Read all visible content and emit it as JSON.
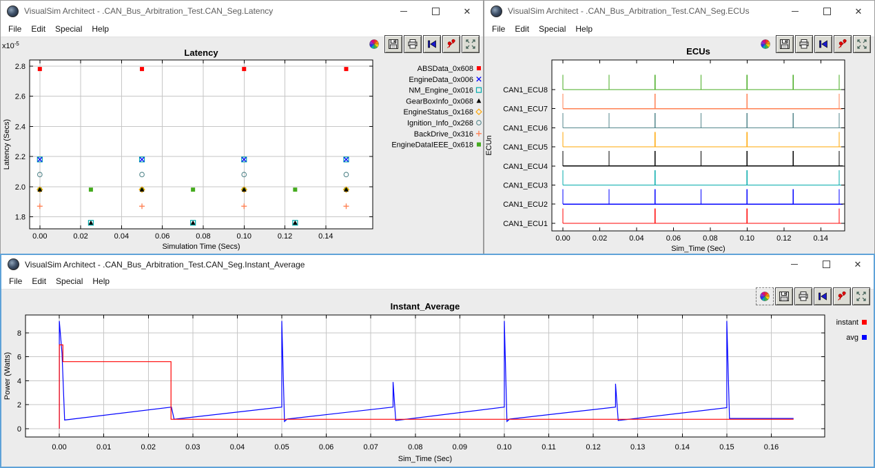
{
  "menu": [
    "File",
    "Edit",
    "Special",
    "Help"
  ],
  "icons": {
    "close_glyph": "✕"
  },
  "toolbar_icons": [
    "palette-icon",
    "save-icon",
    "print-icon",
    "go-first-icon",
    "format-plot-icon",
    "fullscreen-icon"
  ],
  "windows": {
    "latency": {
      "title": "VisualSim Architect - .CAN_Bus_Arbitration_Test.CAN_Seg.Latency"
    },
    "ecus": {
      "title": "VisualSim Architect - .CAN_Bus_Arbitration_Test.CAN_Seg.ECUs"
    },
    "instant": {
      "title": "VisualSim Architect - .CAN_Bus_Arbitration_Test.CAN_Seg.Instant_Average"
    }
  },
  "chart_data": [
    {
      "id": "latency",
      "type": "scatter",
      "title": "Latency",
      "xlabel": "Simulation Time (Secs)",
      "ylabel": "Latency (Secs)",
      "y_multiplier": {
        "base": "x10",
        "exponent": "-5"
      },
      "grid": true,
      "legend_position": "right",
      "xlim": [
        -0.005,
        0.163
      ],
      "ylim": [
        1.72,
        2.84
      ],
      "xticks": [
        0.0,
        0.02,
        0.04,
        0.06,
        0.08,
        0.1,
        0.12,
        0.14
      ],
      "xtick_labels": [
        "0.00",
        "0.02",
        "0.04",
        "0.06",
        "0.08",
        "0.10",
        "0.12",
        "0.14"
      ],
      "yticks": [
        1.8,
        2.0,
        2.2,
        2.4,
        2.6,
        2.8
      ],
      "ytick_labels": [
        "1.8",
        "2.0",
        "2.2",
        "2.4",
        "2.6",
        "2.8"
      ],
      "series": [
        {
          "name": "ABSData_0x608",
          "color": "#ff0000",
          "marker": "filled-square",
          "points": [
            [
              0.0,
              2.78
            ],
            [
              0.05,
              2.78
            ],
            [
              0.1,
              2.78
            ],
            [
              0.15,
              2.78
            ]
          ]
        },
        {
          "name": "EngineData_0x006",
          "color": "#0000ff",
          "marker": "cross",
          "points": [
            [
              0.0,
              2.18
            ],
            [
              0.05,
              2.18
            ],
            [
              0.1,
              2.18
            ],
            [
              0.15,
              2.18
            ]
          ]
        },
        {
          "name": "NM_Engine_0x016",
          "color": "#00aaaa",
          "marker": "open-square",
          "points": [
            [
              0.0,
              2.18
            ],
            [
              0.025,
              1.76
            ],
            [
              0.05,
              2.18
            ],
            [
              0.075,
              1.76
            ],
            [
              0.1,
              2.18
            ],
            [
              0.125,
              1.76
            ],
            [
              0.15,
              2.18
            ]
          ]
        },
        {
          "name": "GearBoxInfo_0x068",
          "color": "#000000",
          "marker": "filled-triangle",
          "points": [
            [
              0.0,
              1.98
            ],
            [
              0.025,
              1.76
            ],
            [
              0.05,
              1.98
            ],
            [
              0.075,
              1.76
            ],
            [
              0.1,
              1.98
            ],
            [
              0.125,
              1.76
            ],
            [
              0.15,
              1.98
            ]
          ]
        },
        {
          "name": "EngineStatus_0x168",
          "color": "#ffa500",
          "marker": "open-diamond",
          "points": [
            [
              0.0,
              1.98
            ],
            [
              0.05,
              1.98
            ],
            [
              0.1,
              1.98
            ],
            [
              0.15,
              1.98
            ]
          ]
        },
        {
          "name": "Ignition_Info_0x268",
          "color": "#53868b",
          "marker": "open-circle",
          "points": [
            [
              0.0,
              2.08
            ],
            [
              0.05,
              2.08
            ],
            [
              0.1,
              2.08
            ],
            [
              0.15,
              2.08
            ]
          ]
        },
        {
          "name": "BackDrive_0x316",
          "color": "#ff7f50",
          "marker": "plus",
          "points": [
            [
              0.0,
              1.87
            ],
            [
              0.05,
              1.87
            ],
            [
              0.1,
              1.87
            ],
            [
              0.15,
              1.87
            ]
          ]
        },
        {
          "name": "EngineDataIEEE_0x618",
          "color": "#45ab1f",
          "marker": "filled-square",
          "points": [
            [
              0.0,
              1.98
            ],
            [
              0.025,
              1.98
            ],
            [
              0.05,
              1.98
            ],
            [
              0.075,
              1.98
            ],
            [
              0.1,
              1.98
            ],
            [
              0.125,
              1.98
            ],
            [
              0.15,
              1.98
            ]
          ]
        }
      ]
    },
    {
      "id": "ecus",
      "type": "line",
      "subtype": "event-rows",
      "title": "ECUs",
      "xlabel": "Sim_Time (Sec)",
      "ylabel": "ECUn",
      "grid": false,
      "xlim": [
        -0.006,
        0.153
      ],
      "ylim": [
        0.6,
        9.55
      ],
      "xticks": [
        0.0,
        0.02,
        0.04,
        0.06,
        0.08,
        0.1,
        0.12,
        0.14
      ],
      "xtick_labels": [
        "0.00",
        "0.02",
        "0.04",
        "0.06",
        "0.08",
        "0.10",
        "0.12",
        "0.14"
      ],
      "baseline_end": 0.152,
      "spike_height": 0.78,
      "rows": [
        {
          "label": "CAN1_ECU1",
          "color": "#ff0000",
          "level": 1,
          "events": [
            0.0,
            0.05,
            0.1,
            0.15
          ]
        },
        {
          "label": "CAN1_ECU2",
          "color": "#0000ff",
          "level": 2,
          "events": [
            0.0,
            0.025,
            0.05,
            0.075,
            0.1,
            0.125,
            0.15
          ]
        },
        {
          "label": "CAN1_ECU3",
          "color": "#00aaaa",
          "level": 3,
          "events": [
            0.0,
            0.05,
            0.1,
            0.15
          ]
        },
        {
          "label": "CAN1_ECU4",
          "color": "#000000",
          "level": 4,
          "events": [
            0.0,
            0.025,
            0.05,
            0.075,
            0.1,
            0.125,
            0.15
          ]
        },
        {
          "label": "CAN1_ECU5",
          "color": "#ffa500",
          "level": 5,
          "events": [
            0.0,
            0.05,
            0.1,
            0.15
          ]
        },
        {
          "label": "CAN1_ECU6",
          "color": "#53868b",
          "level": 6,
          "events": [
            0.0,
            0.025,
            0.05,
            0.075,
            0.1,
            0.125,
            0.15
          ]
        },
        {
          "label": "CAN1_ECU7",
          "color": "#ff7f50",
          "level": 7,
          "events": [
            0.0,
            0.05,
            0.1,
            0.15
          ]
        },
        {
          "label": "CAN1_ECU8",
          "color": "#45ab1f",
          "level": 8,
          "events": [
            0.0,
            0.025,
            0.05,
            0.075,
            0.1,
            0.125,
            0.15
          ]
        }
      ]
    },
    {
      "id": "instant",
      "type": "line",
      "title": "Instant_Average",
      "xlabel": "Sim_Time (Sec)",
      "ylabel": "Power (Watts)",
      "grid": true,
      "legend_position": "right",
      "xlim": [
        -0.0076,
        0.172
      ],
      "ylim": [
        -0.7,
        9.5
      ],
      "xticks": [
        0.0,
        0.01,
        0.02,
        0.03,
        0.04,
        0.05,
        0.06,
        0.07,
        0.08,
        0.09,
        0.1,
        0.11,
        0.12,
        0.13,
        0.14,
        0.15,
        0.16
      ],
      "xtick_labels": [
        "0.00",
        "0.01",
        "0.02",
        "0.03",
        "0.04",
        "0.05",
        "0.06",
        "0.07",
        "0.08",
        "0.09",
        "0.10",
        "0.11",
        "0.12",
        "0.13",
        "0.14",
        "0.15",
        "0.16"
      ],
      "yticks": [
        0,
        2,
        4,
        6,
        8
      ],
      "ytick_labels": [
        "0",
        "2",
        "4",
        "6",
        "8"
      ],
      "series": [
        {
          "name": "instant",
          "color": "#ff0000",
          "points": [
            [
              0.0,
              0.0
            ],
            [
              0.0,
              7.0
            ],
            [
              0.0008,
              7.0
            ],
            [
              0.0008,
              5.6
            ],
            [
              0.0251,
              5.6
            ],
            [
              0.0251,
              0.78
            ],
            [
              0.165,
              0.78
            ]
          ]
        },
        {
          "name": "avg",
          "color": "#0000ff",
          "points": [
            [
              0.0,
              0.0
            ],
            [
              0.0,
              9.0
            ],
            [
              0.0006,
              6.3
            ],
            [
              0.0012,
              0.72
            ],
            [
              0.0252,
              1.8
            ],
            [
              0.0258,
              0.78
            ],
            [
              0.05,
              1.8
            ],
            [
              0.05,
              9.0
            ],
            [
              0.0506,
              0.6
            ],
            [
              0.0512,
              0.8
            ],
            [
              0.075,
              1.8
            ],
            [
              0.075,
              3.9
            ],
            [
              0.0756,
              0.68
            ],
            [
              0.1,
              1.8
            ],
            [
              0.1,
              9.0
            ],
            [
              0.1006,
              0.6
            ],
            [
              0.1012,
              0.8
            ],
            [
              0.125,
              1.8
            ],
            [
              0.125,
              3.75
            ],
            [
              0.1256,
              0.68
            ],
            [
              0.15,
              1.75
            ],
            [
              0.15,
              9.0
            ],
            [
              0.1506,
              0.85
            ],
            [
              0.165,
              0.85
            ]
          ]
        }
      ]
    }
  ]
}
